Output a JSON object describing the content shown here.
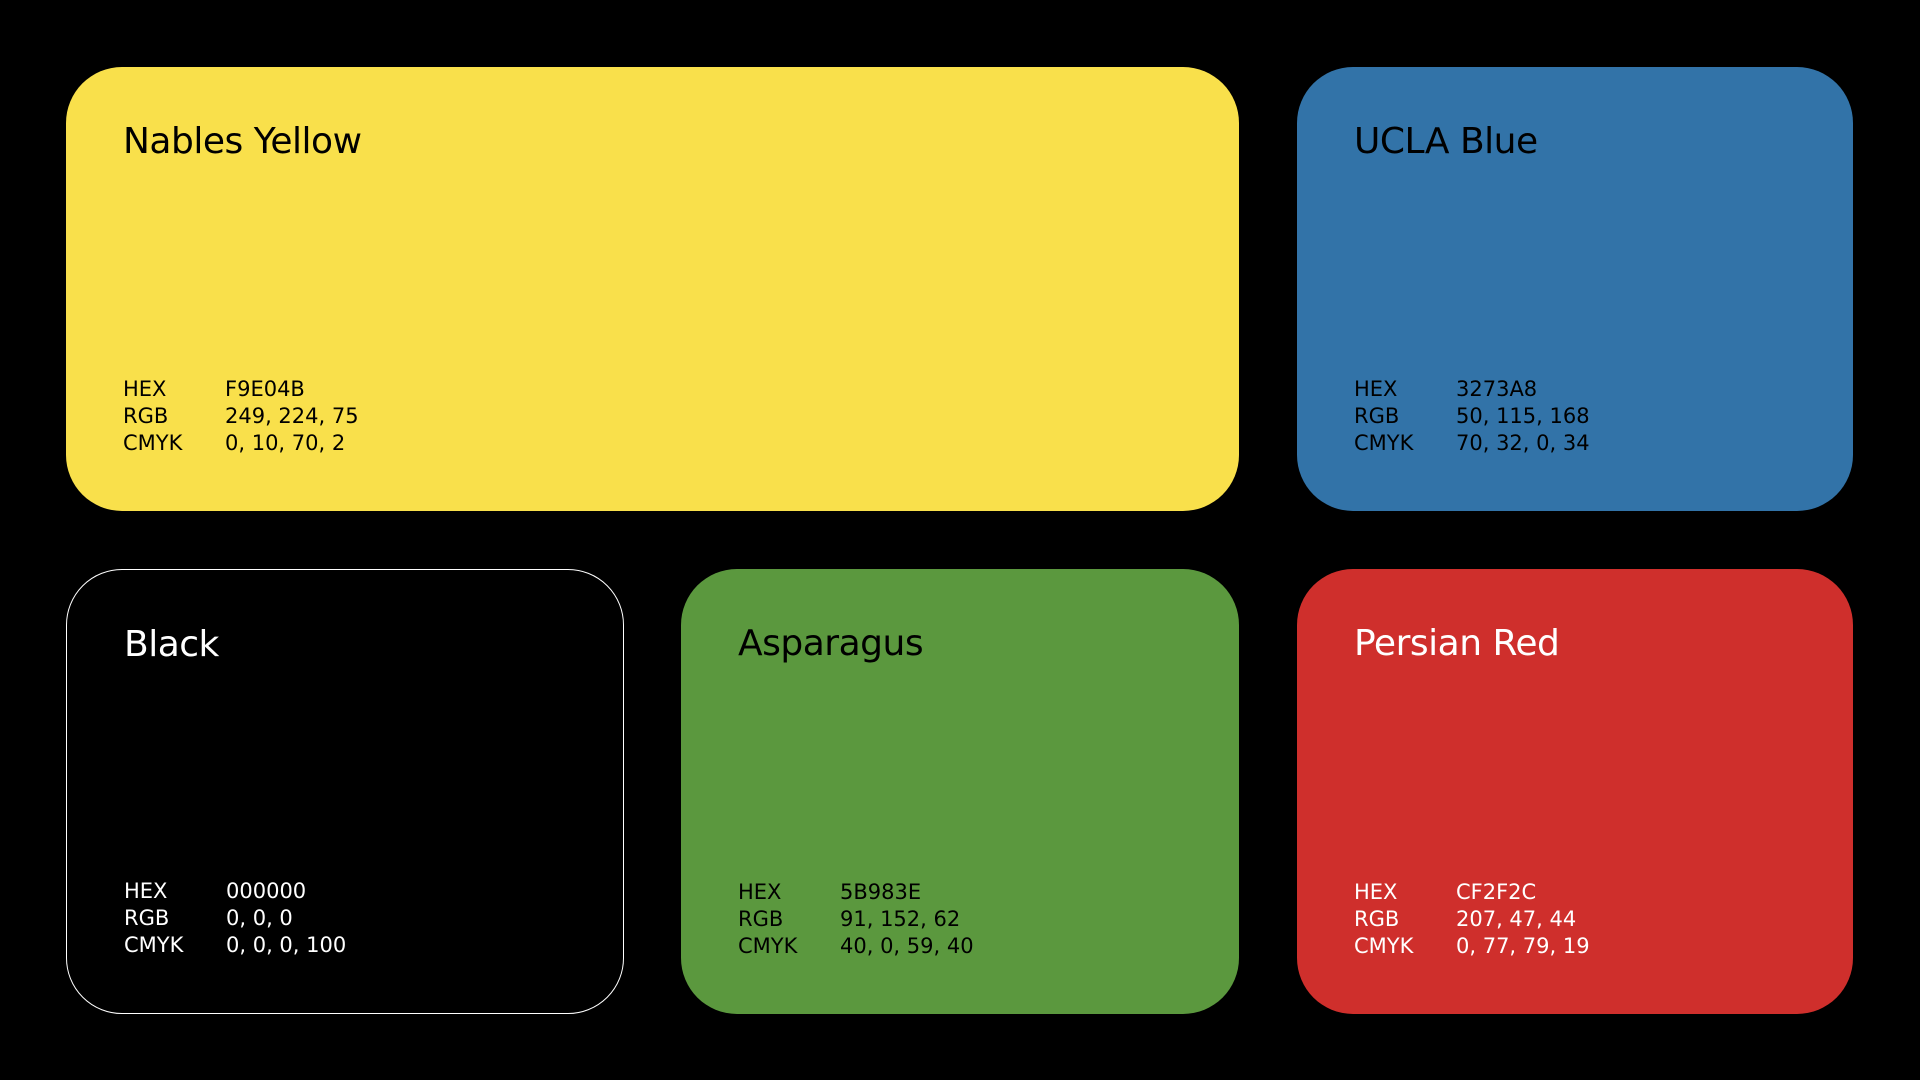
{
  "cards": [
    {
      "name": "Nables Yellow",
      "color": "#F9E04B",
      "text_color": "dark",
      "hex_label": "HEX",
      "hex_value": "F9E04B",
      "rgb_label": "RGB",
      "rgb_value": "249, 224, 75",
      "cmyk_label": "CMYK",
      "cmyk_value": "0, 10, 70, 2"
    },
    {
      "name": "UCLA Blue",
      "color": "#3273A8",
      "text_color": "dark",
      "hex_label": "HEX",
      "hex_value": "3273A8",
      "rgb_label": "RGB",
      "rgb_value": "50, 115, 168",
      "cmyk_label": "CMYK",
      "cmyk_value": "70, 32, 0, 34"
    },
    {
      "name": "Black",
      "color": "#000000",
      "text_color": "light",
      "hex_label": "HEX",
      "hex_value": "000000",
      "rgb_label": "RGB",
      "rgb_value": "0, 0, 0",
      "cmyk_label": "CMYK",
      "cmyk_value": "0, 0, 0, 100"
    },
    {
      "name": "Asparagus",
      "color": "#5B983E",
      "text_color": "dark",
      "hex_label": "HEX",
      "hex_value": "5B983E",
      "rgb_label": "RGB",
      "rgb_value": "91, 152, 62",
      "cmyk_label": "CMYK",
      "cmyk_value": "40, 0, 59, 40"
    },
    {
      "name": "Persian Red",
      "color": "#CF2F2C",
      "text_color": "light",
      "hex_label": "HEX",
      "hex_value": "CF2F2C",
      "rgb_label": "RGB",
      "rgb_value": "207, 47, 44",
      "cmyk_label": "CMYK",
      "cmyk_value": "0, 77, 79, 19"
    }
  ]
}
